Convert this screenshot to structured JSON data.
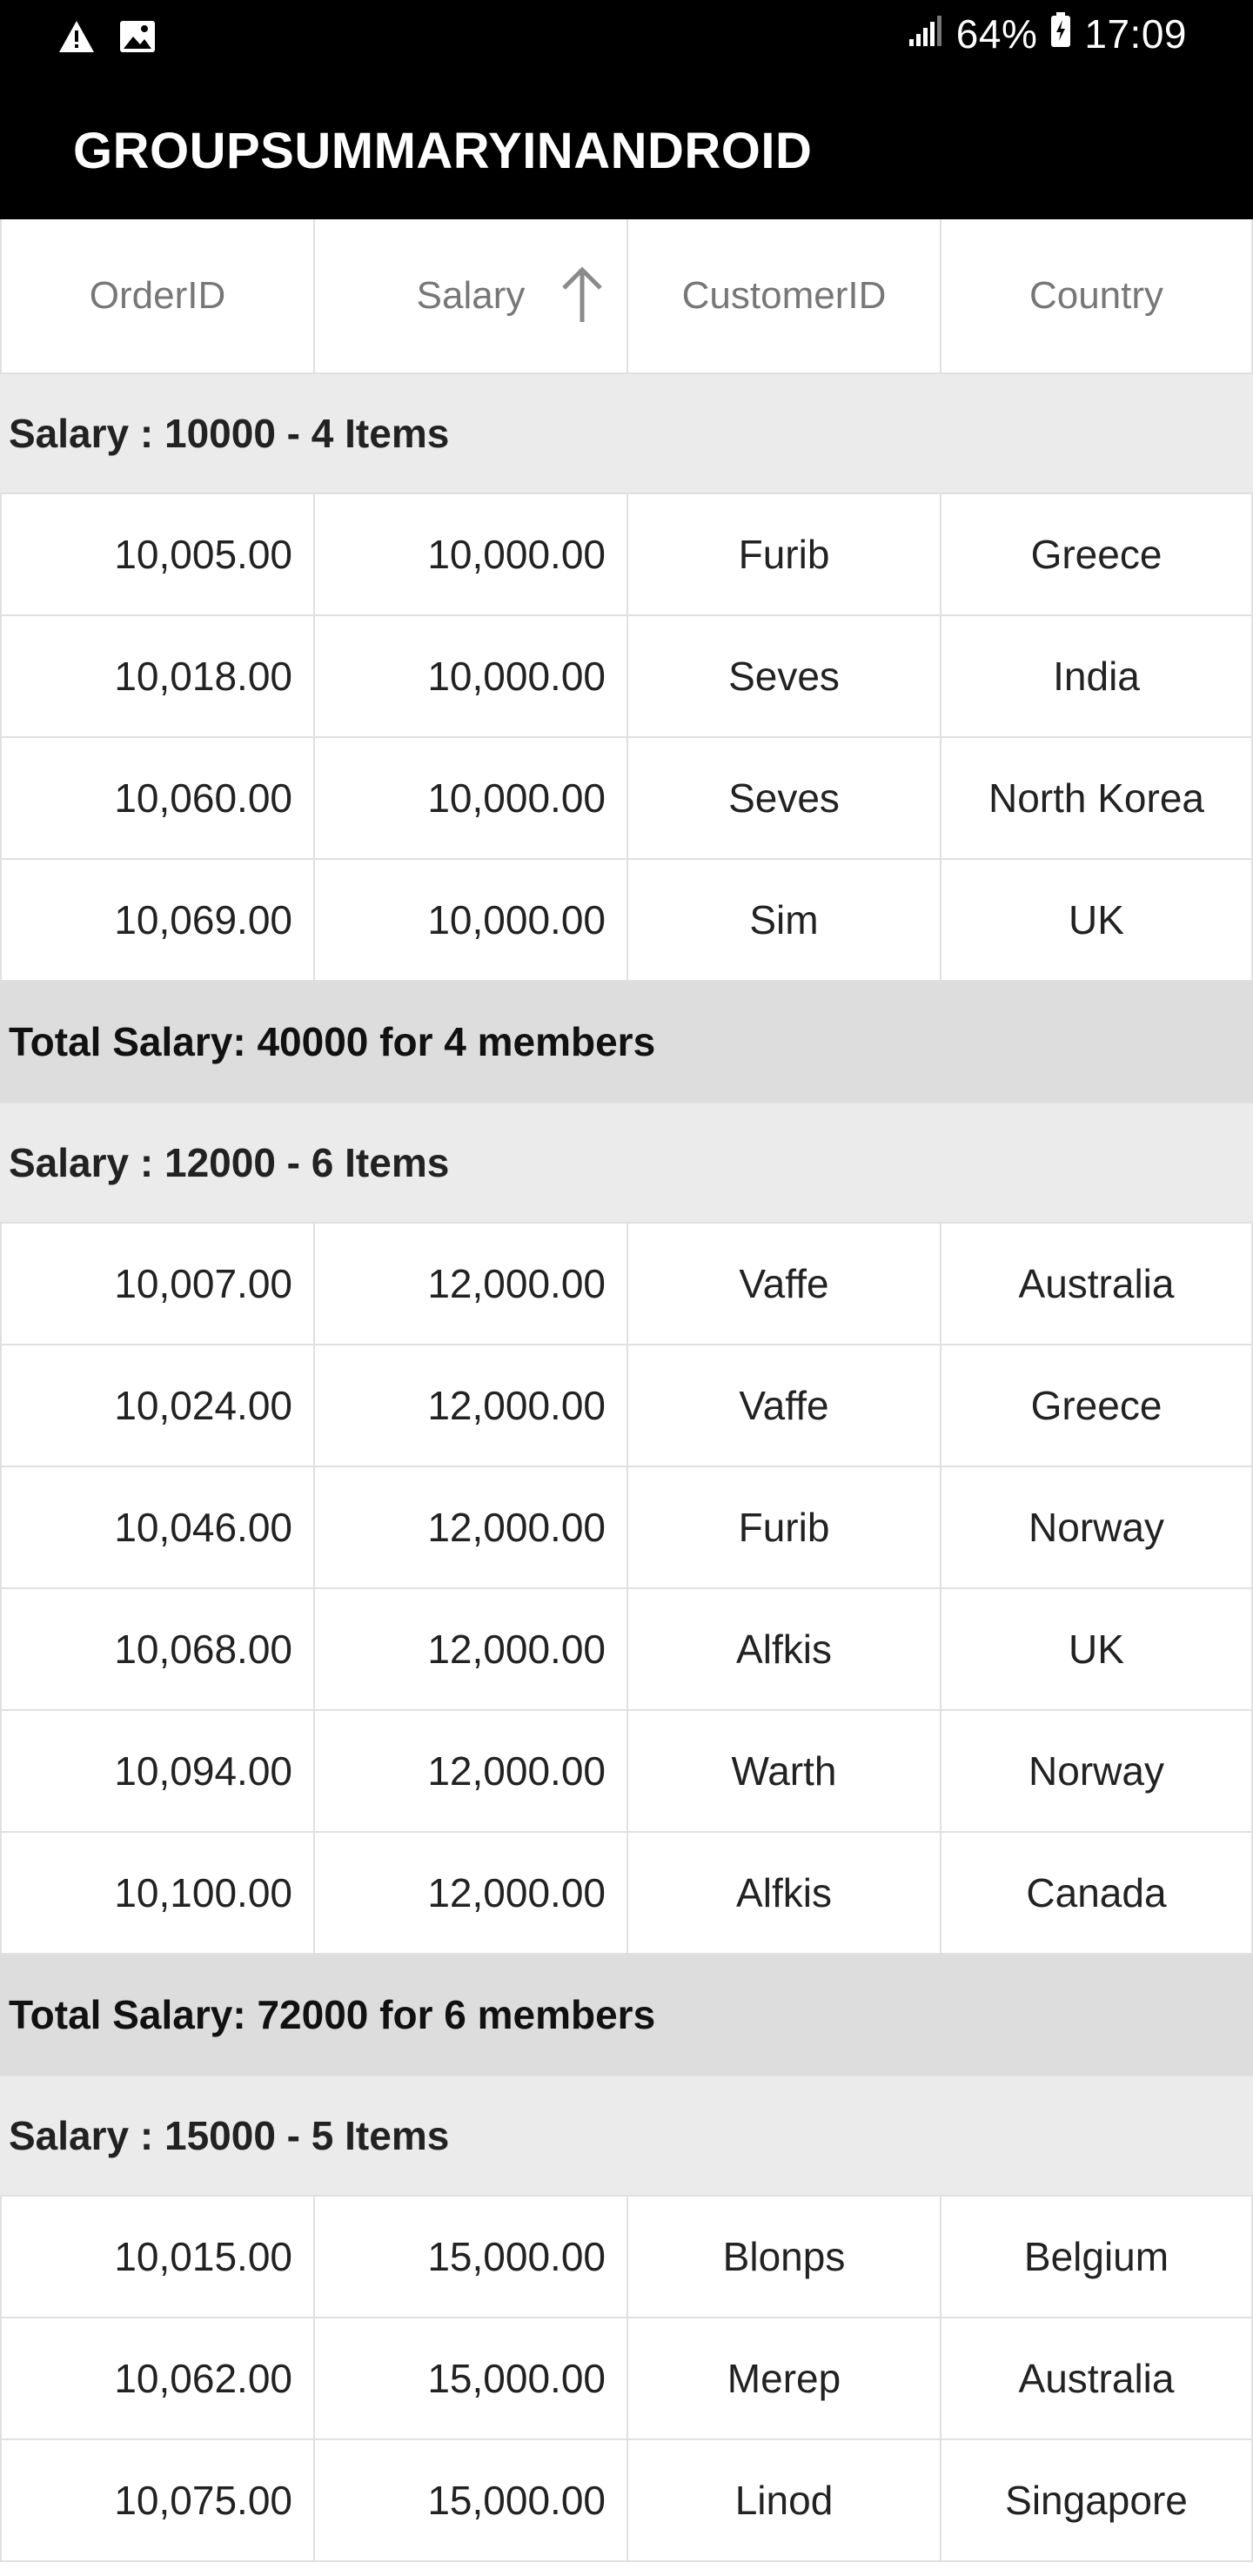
{
  "statusbar": {
    "battery": "64%",
    "time": "17:09"
  },
  "appbar": {
    "title": "GROUPSUMMARYINANDROID"
  },
  "columns": [
    "OrderID",
    "Salary",
    "CustomerID",
    "Country"
  ],
  "groups": [
    {
      "caption": "Salary : 10000 - 4 Items",
      "rows": [
        [
          "10,005.00",
          "10,000.00",
          "Furib",
          "Greece"
        ],
        [
          "10,018.00",
          "10,000.00",
          "Seves",
          "India"
        ],
        [
          "10,060.00",
          "10,000.00",
          "Seves",
          "North Korea"
        ],
        [
          "10,069.00",
          "10,000.00",
          "Sim",
          "UK"
        ]
      ],
      "summary": "Total Salary: 40000 for 4 members"
    },
    {
      "caption": "Salary : 12000 - 6 Items",
      "rows": [
        [
          "10,007.00",
          "12,000.00",
          "Vaffe",
          "Australia"
        ],
        [
          "10,024.00",
          "12,000.00",
          "Vaffe",
          "Greece"
        ],
        [
          "10,046.00",
          "12,000.00",
          "Furib",
          "Norway"
        ],
        [
          "10,068.00",
          "12,000.00",
          "Alfkis",
          "UK"
        ],
        [
          "10,094.00",
          "12,000.00",
          "Warth",
          "Norway"
        ],
        [
          "10,100.00",
          "12,000.00",
          "Alfkis",
          "Canada"
        ]
      ],
      "summary": "Total Salary: 72000 for 6 members"
    },
    {
      "caption": "Salary : 15000 - 5 Items",
      "rows": [
        [
          "10,015.00",
          "15,000.00",
          "Blonps",
          "Belgium"
        ],
        [
          "10,062.00",
          "15,000.00",
          "Merep",
          "Australia"
        ],
        [
          "10,075.00",
          "15,000.00",
          "Linod",
          "Singapore"
        ]
      ]
    }
  ]
}
